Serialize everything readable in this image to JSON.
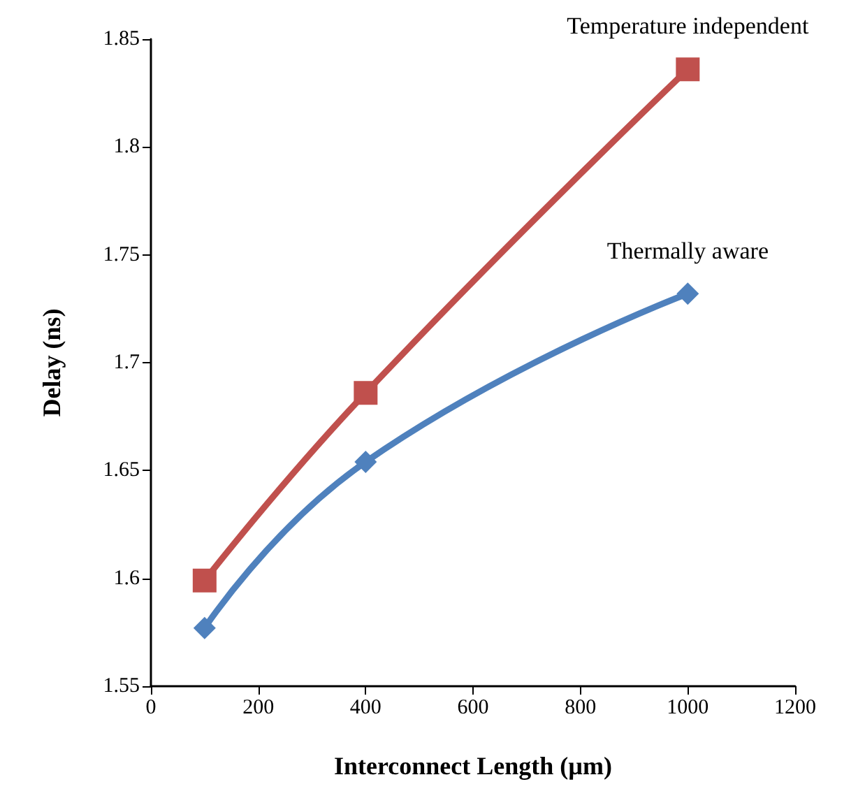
{
  "chart_data": {
    "type": "line",
    "xlabel": "Interconnect Length (µm)",
    "ylabel": "Delay (ns)",
    "x": [
      100,
      400,
      1000
    ],
    "series": [
      {
        "name": "Temperature independent",
        "color": "#c0504d",
        "marker": "square",
        "values": [
          1.599,
          1.686,
          1.836
        ]
      },
      {
        "name": "Thermally aware",
        "color": "#4f81bd",
        "marker": "diamond",
        "values": [
          1.577,
          1.654,
          1.732
        ]
      }
    ],
    "xlim": [
      0,
      1200
    ],
    "xticks": [
      0,
      200,
      400,
      600,
      800,
      1000,
      1200
    ],
    "ylim": [
      1.55,
      1.85
    ],
    "yticks": [
      1.55,
      1.6,
      1.65,
      1.7,
      1.75,
      1.8,
      1.85
    ],
    "grid": false,
    "legend": false
  }
}
